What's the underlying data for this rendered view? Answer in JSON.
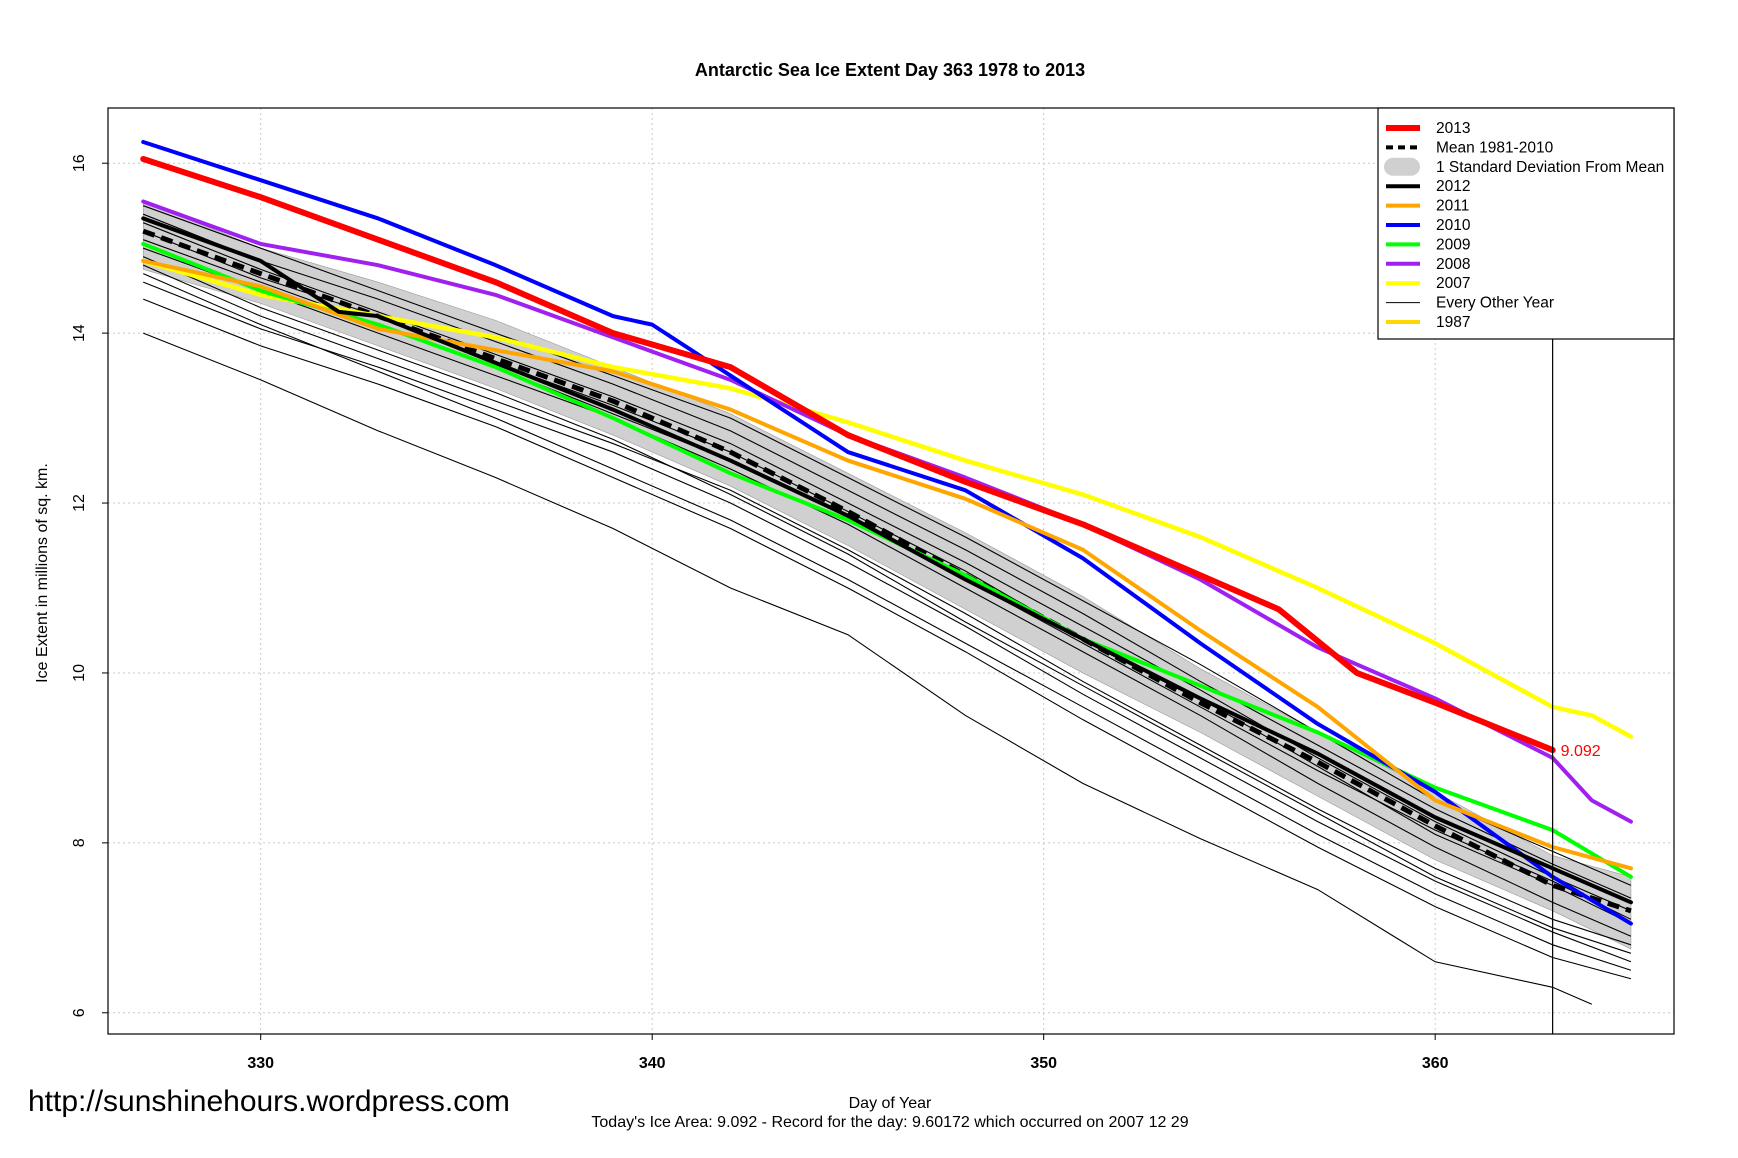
{
  "chart_data": {
    "type": "line",
    "title": "Antarctic Sea Ice Extent Day 363 1978 to 2013",
    "xlabel": "Day of Year",
    "ylabel": "Ice Extent in millions of sq. km.",
    "xlim": [
      326.1,
      366.1
    ],
    "ylim": [
      5.75,
      16.65
    ],
    "x_ticks": [
      330,
      340,
      350,
      360
    ],
    "y_ticks": [
      6,
      8,
      10,
      12,
      14,
      16
    ],
    "x_tick_labels": [
      "330",
      "340",
      "350",
      "360"
    ],
    "y_tick_labels": [
      "6",
      "8",
      "10",
      "12",
      "14",
      "16"
    ],
    "grid": true,
    "current_day_marker": 363,
    "annotation": {
      "x": 363,
      "y": 9.092,
      "text": "9.092",
      "color": "#ff0000"
    },
    "subtitle": "Today's Ice Area: 9.092  - Record for the day: 9.60172 which occurred on 2007 12 29",
    "band_color": "#d0d0d0",
    "band": {
      "x": [
        327,
        330,
        333,
        336,
        339,
        342,
        345,
        348,
        351,
        354,
        357,
        360,
        363,
        365
      ],
      "lower": [
        14.75,
        14.35,
        13.85,
        13.35,
        12.8,
        12.2,
        11.5,
        10.75,
        10.0,
        9.3,
        8.55,
        7.8,
        7.2,
        6.75
      ],
      "upper": [
        15.55,
        15.0,
        14.6,
        14.15,
        13.6,
        13.05,
        12.35,
        11.65,
        10.9,
        10.05,
        9.3,
        8.6,
        7.85,
        7.6
      ]
    },
    "other_years": [
      {
        "x": [
          327,
          330,
          333,
          336,
          339,
          342,
          345,
          348,
          351,
          354,
          357,
          360,
          363,
          365
        ],
        "values": [
          15.2,
          14.65,
          14.2,
          13.65,
          13.15,
          12.6,
          11.9,
          11.2,
          10.4,
          9.7,
          8.9,
          8.1,
          7.5,
          7.05
        ]
      },
      {
        "x": [
          327,
          330,
          333,
          336,
          339,
          342,
          345,
          348,
          351,
          354,
          357,
          360,
          363,
          365
        ],
        "values": [
          15.0,
          14.5,
          14.0,
          13.5,
          13.0,
          12.4,
          11.75,
          11.0,
          10.25,
          9.5,
          8.7,
          7.95,
          7.3,
          6.9
        ]
      },
      {
        "x": [
          327,
          330,
          333,
          336,
          339,
          342,
          345,
          348,
          351,
          354,
          357,
          360,
          363,
          365
        ],
        "values": [
          15.4,
          14.85,
          14.4,
          13.9,
          13.4,
          12.85,
          12.15,
          11.45,
          10.7,
          9.9,
          9.15,
          8.4,
          7.75,
          7.35
        ]
      },
      {
        "x": [
          327,
          330,
          333,
          336,
          339,
          342,
          345,
          348,
          351,
          354,
          357,
          360,
          363,
          365
        ],
        "values": [
          14.9,
          14.3,
          13.8,
          13.3,
          12.75,
          12.1,
          11.4,
          10.6,
          9.85,
          9.1,
          8.35,
          7.6,
          7.0,
          6.7
        ]
      },
      {
        "x": [
          327,
          330,
          333,
          336,
          339,
          342,
          345,
          348,
          351,
          354,
          357,
          360,
          363,
          365
        ],
        "values": [
          14.7,
          14.1,
          13.55,
          13.0,
          12.4,
          11.8,
          11.1,
          10.35,
          9.6,
          8.85,
          8.1,
          7.4,
          6.8,
          6.5
        ]
      },
      {
        "x": [
          327,
          330,
          333,
          336,
          339,
          342,
          345,
          348,
          351,
          354,
          357,
          360,
          363,
          365
        ],
        "values": [
          15.5,
          15.0,
          14.5,
          14.0,
          13.5,
          13.0,
          12.3,
          11.6,
          10.85,
          10.1,
          9.3,
          8.5,
          7.9,
          7.5
        ]
      },
      {
        "x": [
          327,
          330,
          333,
          336,
          339,
          342,
          345,
          348,
          351,
          354,
          357,
          360,
          363,
          365
        ],
        "values": [
          14.4,
          13.85,
          13.4,
          12.9,
          12.3,
          11.7,
          11.0,
          10.25,
          9.45,
          8.7,
          7.95,
          7.25,
          6.65,
          6.4
        ]
      },
      {
        "x": [
          327,
          330,
          333,
          336,
          339,
          342,
          345,
          348,
          351,
          354,
          357,
          360,
          363,
          364
        ],
        "values": [
          14.0,
          13.45,
          12.85,
          12.3,
          11.7,
          11.0,
          10.45,
          9.5,
          8.7,
          8.05,
          7.45,
          6.6,
          6.3,
          6.1
        ]
      },
      {
        "x": [
          327,
          330,
          333,
          336,
          339,
          342,
          345,
          348,
          351,
          354,
          357,
          360,
          363,
          365
        ],
        "values": [
          15.3,
          14.75,
          14.25,
          13.75,
          13.25,
          12.7,
          12.0,
          11.3,
          10.55,
          9.8,
          9.0,
          8.25,
          7.6,
          7.2
        ]
      },
      {
        "x": [
          327,
          330,
          333,
          336,
          339,
          342,
          345,
          348,
          351,
          354,
          357,
          360,
          363,
          365
        ],
        "values": [
          14.6,
          14.05,
          13.6,
          13.1,
          12.6,
          12.0,
          11.3,
          10.55,
          9.75,
          9.0,
          8.25,
          7.55,
          6.95,
          6.6
        ]
      },
      {
        "x": [
          327,
          330,
          333,
          336,
          339,
          342,
          345,
          348,
          351,
          354,
          357,
          360,
          363,
          365
        ],
        "values": [
          15.1,
          14.6,
          14.1,
          13.6,
          13.05,
          12.5,
          11.85,
          11.1,
          10.35,
          9.6,
          8.85,
          8.15,
          7.55,
          7.1
        ]
      },
      {
        "x": [
          327,
          330,
          333,
          336,
          339,
          342,
          345,
          348,
          351,
          354,
          357,
          360,
          363,
          365
        ],
        "values": [
          14.8,
          14.2,
          13.7,
          13.2,
          12.7,
          12.15,
          11.45,
          10.7,
          9.9,
          9.15,
          8.4,
          7.7,
          7.1,
          6.8
        ]
      }
    ],
    "series": [
      {
        "name": "Mean 1981-2010",
        "color": "#000000",
        "width": 5,
        "dash": "12,7",
        "x": [
          327,
          330,
          333,
          336,
          339,
          342,
          345,
          348,
          351,
          354,
          357,
          360,
          363,
          365
        ],
        "values": [
          15.2,
          14.7,
          14.2,
          13.7,
          13.2,
          12.6,
          11.9,
          11.15,
          10.4,
          9.65,
          8.95,
          8.2,
          7.5,
          7.2
        ]
      },
      {
        "name": "2007",
        "color": "#ffff00",
        "width": 4.5,
        "x": [
          327,
          330,
          333,
          336,
          339,
          342,
          345,
          348,
          351,
          354,
          357,
          360,
          363,
          364,
          365
        ],
        "values": [
          14.85,
          14.45,
          14.2,
          13.95,
          13.6,
          13.35,
          12.95,
          12.5,
          12.1,
          11.6,
          11.0,
          10.35,
          9.6,
          9.5,
          9.25
        ]
      },
      {
        "name": "2008",
        "color": "#a020f0",
        "width": 4,
        "x": [
          327,
          330,
          333,
          336,
          339,
          342,
          345,
          348,
          351,
          354,
          357,
          360,
          363,
          364,
          365
        ],
        "values": [
          15.55,
          15.05,
          14.8,
          14.45,
          13.95,
          13.45,
          12.8,
          12.3,
          11.75,
          11.1,
          10.3,
          9.7,
          9.0,
          8.5,
          8.25
        ]
      },
      {
        "name": "2009",
        "color": "#00ff00",
        "width": 4,
        "x": [
          327,
          330,
          333,
          336,
          339,
          342,
          345,
          348,
          351,
          354,
          357,
          360,
          363,
          365
        ],
        "values": [
          15.05,
          14.5,
          14.1,
          13.6,
          13.0,
          12.35,
          11.8,
          11.15,
          10.4,
          9.85,
          9.3,
          8.65,
          8.15,
          7.6
        ]
      },
      {
        "name": "2010",
        "color": "#0000ff",
        "width": 4,
        "x": [
          327,
          330,
          333,
          336,
          339,
          340,
          342,
          345,
          348,
          351,
          354,
          357,
          360,
          363,
          365
        ],
        "values": [
          16.25,
          15.8,
          15.35,
          14.8,
          14.2,
          14.1,
          13.5,
          12.6,
          12.15,
          11.35,
          10.35,
          9.4,
          8.6,
          7.6,
          7.05
        ]
      },
      {
        "name": "2011",
        "color": "#ffa500",
        "width": 4,
        "x": [
          327,
          330,
          333,
          336,
          339,
          342,
          345,
          348,
          351,
          354,
          357,
          360,
          363,
          365
        ],
        "values": [
          14.85,
          14.55,
          14.05,
          13.8,
          13.55,
          13.1,
          12.5,
          12.05,
          11.45,
          10.5,
          9.6,
          8.5,
          7.95,
          7.7
        ]
      },
      {
        "name": "2012",
        "color": "#000000",
        "width": 4,
        "x": [
          327,
          330,
          332,
          333,
          336,
          339,
          342,
          345,
          348,
          351,
          354,
          357,
          360,
          363,
          365
        ],
        "values": [
          15.35,
          14.85,
          14.25,
          14.2,
          13.65,
          13.1,
          12.5,
          11.85,
          11.1,
          10.4,
          9.7,
          9.05,
          8.3,
          7.7,
          7.3
        ]
      },
      {
        "name": "2013",
        "color": "#ff0000",
        "width": 6,
        "x": [
          327,
          330,
          333,
          336,
          339,
          342,
          345,
          348,
          351,
          354,
          356,
          358,
          360,
          363
        ],
        "values": [
          16.05,
          15.6,
          15.1,
          14.6,
          14.0,
          13.6,
          12.8,
          12.25,
          11.75,
          11.15,
          10.75,
          10.0,
          9.65,
          9.092
        ]
      }
    ],
    "legend": {
      "position": "top-right",
      "entries": [
        {
          "label": "2013",
          "style": "line",
          "color": "#ff0000",
          "width": 6
        },
        {
          "label": "Mean 1981-2010",
          "style": "dashed",
          "color": "#000000",
          "width": 4
        },
        {
          "label": "1 Standard Deviation From Mean",
          "style": "band",
          "color": "#d0d0d0",
          "width": 16
        },
        {
          "label": "2012",
          "style": "line",
          "color": "#000000",
          "width": 4
        },
        {
          "label": "2011",
          "style": "line",
          "color": "#ffa500",
          "width": 4
        },
        {
          "label": "2010",
          "style": "line",
          "color": "#0000ff",
          "width": 4
        },
        {
          "label": "2009",
          "style": "line",
          "color": "#00ff00",
          "width": 4
        },
        {
          "label": "2008",
          "style": "line",
          "color": "#a020f0",
          "width": 4
        },
        {
          "label": "2007",
          "style": "line",
          "color": "#ffff00",
          "width": 4
        },
        {
          "label": "Every Other Year",
          "style": "line",
          "color": "#000000",
          "width": 1
        },
        {
          "label": "1987",
          "style": "line",
          "color": "#ffd700",
          "width": 4
        }
      ]
    }
  },
  "watermark": "http://sunshinehours.wordpress.com"
}
